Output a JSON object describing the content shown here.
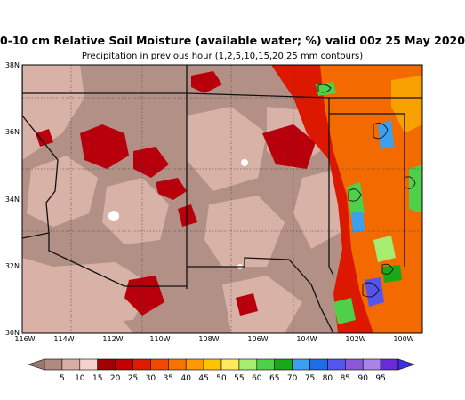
{
  "title": "0-10 cm Relative Soil Moisture (available water; %) valid 00z 25 May 2020",
  "subtitle": "Precipitation in previous hour (1,2,5,10,15,20,25 mm contours)",
  "map": {
    "lat_labels": [
      "38N",
      "36N",
      "34N",
      "32N",
      "30N"
    ],
    "lon_labels": [
      "116W",
      "114W",
      "112W",
      "110W",
      "108W",
      "106W",
      "104W",
      "102W",
      "100W"
    ]
  },
  "colorbar": {
    "labels": [
      "5",
      "10",
      "15",
      "20",
      "25",
      "30",
      "35",
      "40",
      "45",
      "50",
      "55",
      "60",
      "65",
      "70",
      "75",
      "80",
      "85",
      "90",
      "95"
    ],
    "colors": [
      "#b08a80",
      "#d6aea5",
      "#f2d2cc",
      "#a30000",
      "#c60000",
      "#e11b00",
      "#f04a00",
      "#f87400",
      "#fc9a00",
      "#ffc400",
      "#ffe95c",
      "#a6ec70",
      "#4ed04a",
      "#18a818",
      "#3ca0f0",
      "#1e6ce6",
      "#5454ee",
      "#8a5ad6",
      "#a884e8",
      "#6a2ad8"
    ],
    "end_left_color": "#9a766c",
    "end_right_color": "#3e30e0"
  },
  "palette": {
    "dry": "#b39085",
    "light": "#d8b1a7",
    "dark_red": "#b8000c",
    "red": "#dd1800",
    "orange": "#f26a00",
    "mexico_tan": "#d9b1a7"
  }
}
